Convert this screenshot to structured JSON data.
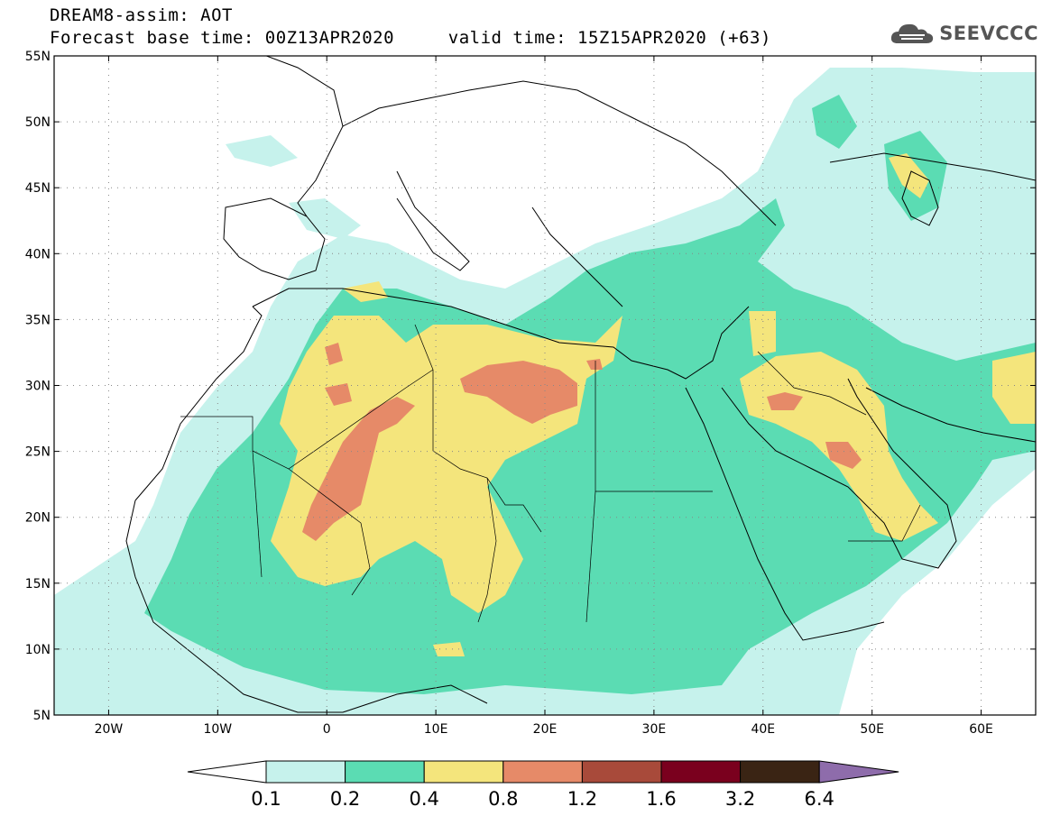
{
  "header": {
    "title": "DREAM8-assim: AOT",
    "base_time_label": "Forecast base time: 00Z13APR2020",
    "valid_time_label": "valid time: 15Z15APR2020 (+63)",
    "brand": "SEEVCCC"
  },
  "map": {
    "lon_range": [
      -25,
      65
    ],
    "lat_range": [
      5,
      55
    ],
    "lat_ticks": [
      "5N",
      "10N",
      "15N",
      "20N",
      "25N",
      "30N",
      "35N",
      "40N",
      "45N",
      "50N",
      "55N"
    ],
    "lon_ticks": [
      "20W",
      "10W",
      "0",
      "10E",
      "20E",
      "30E",
      "40E",
      "50E",
      "60E"
    ],
    "gridlines": "dotted"
  },
  "colorbar": {
    "labels": [
      "0.1",
      "0.2",
      "0.4",
      "0.8",
      "1.2",
      "1.6",
      "3.2",
      "6.4"
    ],
    "colors": [
      "#c6f2ec",
      "#5bdcb3",
      "#f4e57c",
      "#e68a68",
      "#a84a3a",
      "#7a001e",
      "#3a2414",
      "#8e6cab"
    ]
  },
  "colors": {
    "aot_0_1": "#c6f2ec",
    "aot_0_2": "#5bdcb3",
    "aot_0_4": "#f4e57c",
    "aot_0_8": "#e68a68"
  }
}
